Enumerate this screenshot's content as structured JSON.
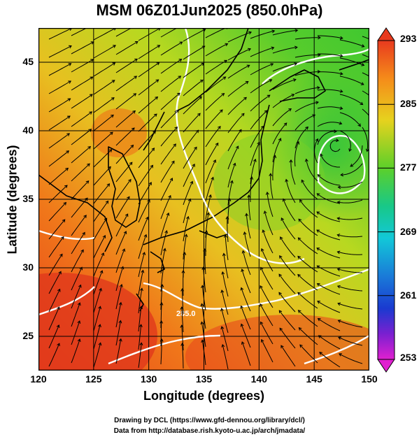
{
  "title": "MSM 06Z01Jun2025 (850.0hPa)",
  "x_axis": {
    "label": "Longitude (degrees)",
    "ticks": [
      "120",
      "125",
      "130",
      "135",
      "140",
      "145",
      "150"
    ],
    "range": [
      120,
      150
    ]
  },
  "y_axis": {
    "label": "Latitude  (degrees)",
    "ticks": [
      "25",
      "30",
      "35",
      "40",
      "45"
    ],
    "range": [
      22.5,
      47.5
    ]
  },
  "colorbar": {
    "labels": [
      "293",
      "285",
      "277",
      "269",
      "261",
      "253"
    ],
    "range": [
      253,
      293
    ]
  },
  "contour_label": "285.0",
  "credits": {
    "line1": "Drawing by DCL (https://www.gfd-dennou.org/library/dcl/)",
    "line2": "Data from http://database.rish.kyoto-u.ac.jp/arch/jmadata/"
  },
  "colors": {
    "warm": "#e83a1e",
    "orange": "#f58c1a",
    "yellow": "#e6d21e",
    "green": "#3fcc2a",
    "cyan": "#12c8d8",
    "blue": "#1a3ad0",
    "magenta": "#e020d0"
  }
}
